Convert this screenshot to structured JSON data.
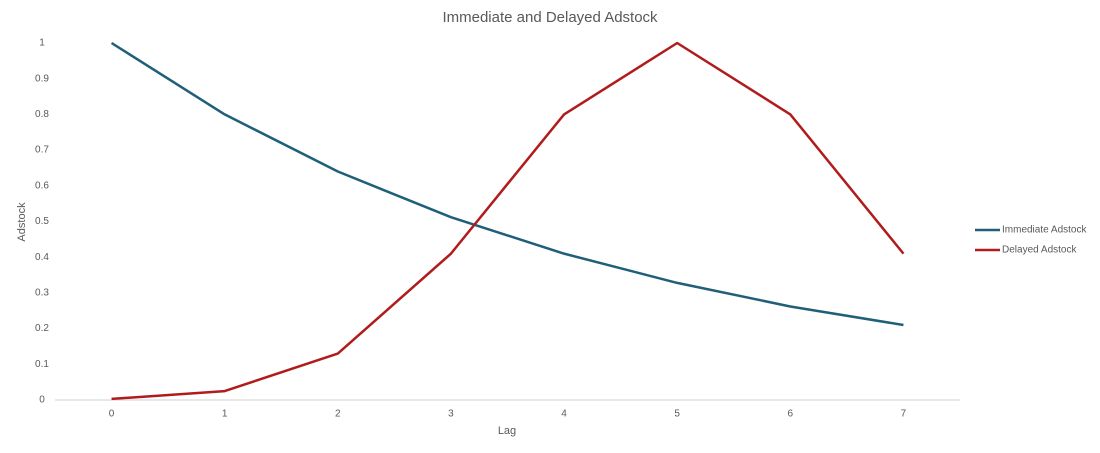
{
  "chart_data": {
    "type": "line",
    "title": "Immediate and Delayed Adstock",
    "x_label": "Lag",
    "y_label": "Adstock",
    "categories": [
      "0",
      "1",
      "2",
      "3",
      "4",
      "5",
      "6",
      "7"
    ],
    "series": [
      {
        "name": "Immediate Adstock",
        "color": "#1f5f7a",
        "values": [
          1,
          0.8,
          0.64,
          0.512,
          0.41,
          0.328,
          0.262,
          0.21
        ]
      },
      {
        "name": "Delayed Adstock",
        "color": "#b01c1c",
        "values": [
          0.003,
          0.025,
          0.13,
          0.41,
          0.8,
          1,
          0.8,
          0.41
        ]
      }
    ],
    "ylim": [
      0,
      1
    ],
    "yticks": [
      0,
      0.1,
      0.2,
      0.3,
      0.4,
      0.5,
      0.6,
      0.7,
      0.8,
      0.9,
      1
    ],
    "grid": false,
    "legend": "right"
  }
}
